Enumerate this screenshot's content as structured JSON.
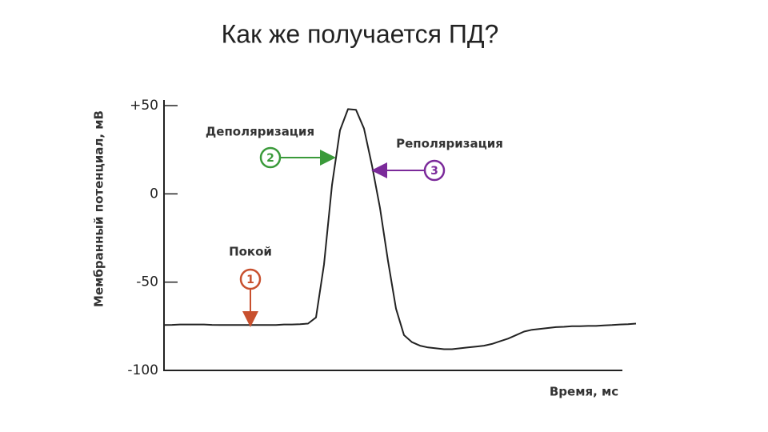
{
  "chart_data": {
    "type": "line",
    "title": "Как же получается ПД?",
    "y_label": "Мембранный потенциал, мВ",
    "x_label": "Время, мс",
    "color": "#222222",
    "ylim": [
      -100,
      50
    ],
    "yticks": [
      {
        "value": 50,
        "label": "+50"
      },
      0,
      -50,
      -100
    ],
    "values": [
      -74.3,
      -74.2,
      -74,
      -74,
      -74,
      -74,
      -74.2,
      -74.3,
      -74.3,
      -74.3,
      -74.3,
      -74.3,
      -74.3,
      -74.3,
      -74.3,
      -74,
      -74,
      -73.8,
      -73.5,
      -70,
      -40,
      5,
      36,
      48,
      47.6,
      37,
      16,
      -8,
      -38,
      -65,
      -80,
      -84,
      -86,
      -87,
      -87.5,
      -88,
      -88,
      -87.5,
      -87,
      -86.5,
      -86,
      -85,
      -83.5,
      -82,
      -80,
      -78,
      -77,
      -76.5,
      -76,
      -75.5,
      -75.3,
      -75,
      -75,
      -74.8,
      -74.8,
      -74.5,
      -74.3,
      -74,
      -73.8,
      -73.5
    ],
    "annotations": [
      {
        "label": "Покой",
        "marker": "1",
        "color": "#c8502e"
      },
      {
        "label": "Деполяризация",
        "marker": "2",
        "color": "#3a9a3a"
      },
      {
        "label": "Реполяризация",
        "marker": "3",
        "color": "#7b2a9a"
      }
    ]
  }
}
